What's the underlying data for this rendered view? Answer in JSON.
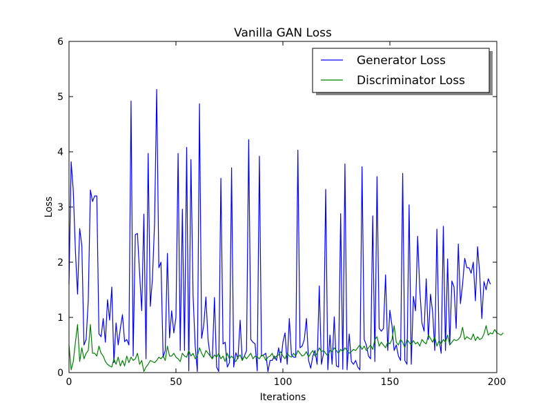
{
  "chart_data": {
    "type": "line",
    "title": "Vanilla GAN Loss",
    "xlabel": "Iterations",
    "ylabel": "Loss",
    "xlim": [
      0,
      200
    ],
    "ylim": [
      0,
      6
    ],
    "xticks": [
      0,
      50,
      100,
      150,
      200
    ],
    "yticks": [
      0,
      1,
      2,
      3,
      4,
      5,
      6
    ],
    "grid": false,
    "legend": "top-right",
    "series": [
      {
        "name": "Generator Loss",
        "color": "#0000ff",
        "values": [
          1.6,
          3.82,
          3.3,
          2.2,
          1.42,
          2.61,
          2.3,
          0.5,
          0.6,
          1.3,
          3.31,
          3.1,
          3.2,
          3.2,
          0.7,
          0.65,
          0.98,
          0.55,
          1.32,
          0.95,
          1.55,
          0.18,
          0.9,
          0.5,
          0.8,
          1.05,
          0.56,
          0.6,
          0.5,
          4.92,
          0.3,
          2.5,
          2.52,
          1.8,
          1.12,
          2.87,
          0.25,
          3.97,
          1.2,
          1.7,
          2.7,
          5.13,
          1.9,
          2.0,
          0.28,
          0.4,
          2.16,
          0.63,
          1.12,
          0.72,
          1.0,
          3.97,
          0.4,
          2.96,
          0.4,
          4.08,
          0.03,
          3.86,
          1.4,
          0.48,
          0.02,
          4.87,
          0.62,
          0.86,
          1.37,
          0.6,
          0.3,
          0.25,
          1.36,
          0.1,
          0.02,
          3.52,
          0.52,
          0.55,
          0.1,
          0.18,
          3.71,
          0.1,
          0.36,
          0.25,
          0.95,
          0.22,
          0.3,
          0.4,
          4.22,
          0.6,
          0.55,
          0.52,
          0.03,
          3.92,
          0.3,
          0.32,
          0.35,
          0.02,
          0.22,
          0.22,
          0.3,
          0.22,
          0.45,
          0.18,
          0.55,
          0.72,
          0.15,
          0.98,
          0.32,
          0.28,
          0.28,
          4.03,
          0.45,
          0.48,
          0.6,
          0.98,
          0.22,
          0.08,
          0.3,
          0.4,
          0.15,
          1.57,
          0.15,
          0.35,
          3.32,
          0.05,
          0.68,
          0.15,
          1.01,
          0.12,
          0.1,
          2.88,
          0.06,
          3.78,
          0.05,
          0.7,
          0.2,
          0.15,
          0.22,
          0.1,
          0.05,
          3.73,
          0.6,
          0.5,
          0.3,
          0.25,
          2.84,
          0.2,
          3.55,
          0.8,
          0.75,
          0.8,
          1.77,
          0.4,
          1.13,
          0.85,
          0.4,
          0.5,
          0.3,
          0.22,
          3.61,
          0.22,
          0.15,
          3.04,
          0.15,
          1.38,
          1.12,
          2.47,
          1.5,
          0.9,
          0.75,
          1.7,
          0.6,
          1.42,
          1.1,
          0.4,
          2.6,
          0.6,
          0.35,
          2.65,
          0.4,
          2.06,
          0.5,
          1.66,
          1.55,
          0.8,
          2.33,
          1.25,
          1.6,
          2.07,
          1.9,
          1.9,
          1.8,
          2.0,
          1.3,
          2.28,
          1.8,
          0.98,
          1.65,
          1.5,
          1.7,
          1.6
        ]
      },
      {
        "name": "Discriminator Loss",
        "color": "#008000",
        "values": [
          0.5,
          0.05,
          0.2,
          0.55,
          0.87,
          0.2,
          0.45,
          0.25,
          0.35,
          0.4,
          0.87,
          0.35,
          0.35,
          0.3,
          0.48,
          0.35,
          0.3,
          0.2,
          0.15,
          0.12,
          0.1,
          0.25,
          0.15,
          0.28,
          0.12,
          0.22,
          0.12,
          0.3,
          0.18,
          0.28,
          0.22,
          0.25,
          0.35,
          0.15,
          0.22,
          0.02,
          0.1,
          0.15,
          0.22,
          0.2,
          0.18,
          0.22,
          0.28,
          0.25,
          0.3,
          0.22,
          0.48,
          0.3,
          0.3,
          0.35,
          0.28,
          0.25,
          0.2,
          0.35,
          0.3,
          0.28,
          0.4,
          0.3,
          0.35,
          0.25,
          0.3,
          0.45,
          0.35,
          0.28,
          0.4,
          0.35,
          0.3,
          0.25,
          0.32,
          0.28,
          0.35,
          0.25,
          0.3,
          0.2,
          0.35,
          0.25,
          0.3,
          0.25,
          0.2,
          0.28,
          0.32,
          0.22,
          0.3,
          0.25,
          0.3,
          0.35,
          0.25,
          0.3,
          0.28,
          0.25,
          0.32,
          0.3,
          0.22,
          0.28,
          0.3,
          0.35,
          0.25,
          0.3,
          0.32,
          0.38,
          0.3,
          0.25,
          0.35,
          0.3,
          0.28,
          0.35,
          0.3,
          0.4,
          0.35,
          0.3,
          0.32,
          0.38,
          0.28,
          0.35,
          0.4,
          0.3,
          0.35,
          0.45,
          0.38,
          0.4,
          0.35,
          0.3,
          0.4,
          0.38,
          0.45,
          0.4,
          0.35,
          0.42,
          0.38,
          0.45,
          0.4,
          0.35,
          0.38,
          0.42,
          0.4,
          0.45,
          0.5,
          0.42,
          0.48,
          0.4,
          0.45,
          0.5,
          0.42,
          0.6,
          0.65,
          0.48,
          0.55,
          0.5,
          0.45,
          0.55,
          0.52,
          0.6,
          0.85,
          0.55,
          0.5,
          0.6,
          0.55,
          0.45,
          0.6,
          0.55,
          0.5,
          0.58,
          0.52,
          0.55,
          0.48,
          0.6,
          0.55,
          0.52,
          0.68,
          0.62,
          0.55,
          0.65,
          0.48,
          0.58,
          0.52,
          0.6,
          0.55,
          0.68,
          0.5,
          0.55,
          0.6,
          0.58,
          0.6,
          0.65,
          0.82,
          0.6,
          0.65,
          0.62,
          0.6,
          0.7,
          0.58,
          0.65,
          0.6,
          0.62,
          0.7,
          0.85,
          0.68,
          0.72,
          0.7,
          0.78,
          0.72,
          0.7,
          0.68,
          0.72
        ]
      }
    ]
  }
}
